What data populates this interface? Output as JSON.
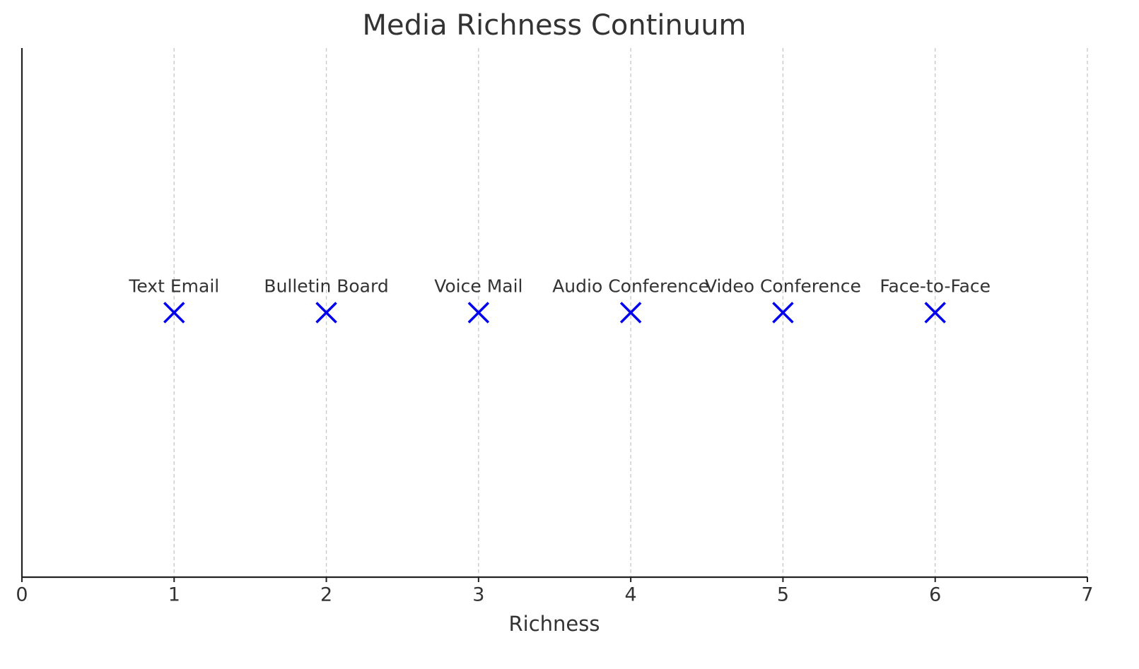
{
  "chart_data": {
    "type": "scatter",
    "title": "Media Richness Continuum",
    "x_label": "Richness",
    "labels": [
      "Text Email",
      "Bulletin Board",
      "Voice Mail",
      "Audio Conference",
      "Video Conference",
      "Face-to-Face"
    ],
    "x": [
      1,
      2,
      3,
      4,
      5,
      6
    ],
    "y": [
      0,
      0,
      0,
      0,
      0,
      0
    ],
    "color": "#0000ee",
    "xlim": [
      0,
      7
    ],
    "xticks": [
      0,
      1,
      2,
      3,
      4,
      5,
      6,
      7
    ],
    "ylim": [
      -1,
      1
    ],
    "grid": true
  }
}
